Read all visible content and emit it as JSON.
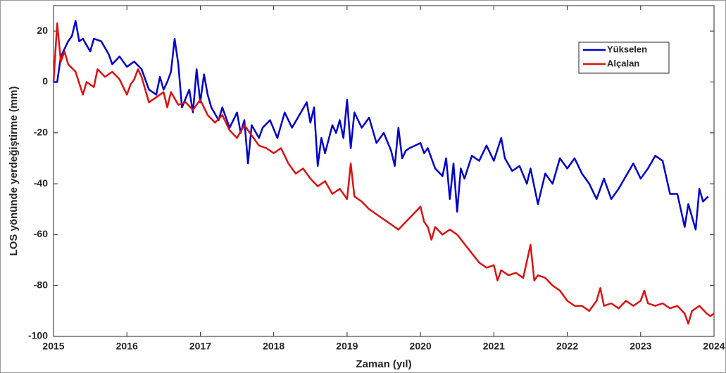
{
  "chart_data": {
    "type": "line",
    "x_label": "Zaman (yıl)",
    "y_label": "LOS yönünde yerdeğiştirme (mm)",
    "xlim": [
      2015,
      2024
    ],
    "xticks": [
      2015,
      2016,
      2017,
      2018,
      2019,
      2020,
      2021,
      2022,
      2023,
      2024
    ],
    "ylim": [
      -100,
      30
    ],
    "yticks": [
      -100,
      -80,
      -60,
      -40,
      -20,
      0,
      20
    ],
    "legend": "upper right",
    "series": [
      {
        "name": "Yükselen",
        "color": "#0000cc",
        "x": [
          2015.0,
          2015.05,
          2015.1,
          2015.15,
          2015.2,
          2015.25,
          2015.3,
          2015.35,
          2015.4,
          2015.5,
          2015.55,
          2015.65,
          2015.75,
          2015.8,
          2015.9,
          2016.0,
          2016.1,
          2016.2,
          2016.3,
          2016.4,
          2016.45,
          2016.5,
          2016.55,
          2016.6,
          2016.65,
          2016.7,
          2016.75,
          2016.85,
          2016.9,
          2016.95,
          2017.0,
          2017.05,
          2017.1,
          2017.15,
          2017.25,
          2017.3,
          2017.4,
          2017.5,
          2017.55,
          2017.6,
          2017.65,
          2017.7,
          2017.8,
          2017.85,
          2017.95,
          2018.05,
          2018.15,
          2018.25,
          2018.35,
          2018.45,
          2018.5,
          2018.55,
          2018.6,
          2018.65,
          2018.7,
          2018.8,
          2018.85,
          2018.9,
          2018.95,
          2019.0,
          2019.05,
          2019.1,
          2019.2,
          2019.3,
          2019.4,
          2019.5,
          2019.6,
          2019.65,
          2019.7,
          2019.75,
          2019.8,
          2019.85,
          2020.0,
          2020.05,
          2020.1,
          2020.2,
          2020.3,
          2020.35,
          2020.4,
          2020.45,
          2020.5,
          2020.55,
          2020.6,
          2020.7,
          2020.8,
          2020.9,
          2021.0,
          2021.1,
          2021.15,
          2021.25,
          2021.35,
          2021.45,
          2021.5,
          2021.6,
          2021.7,
          2021.8,
          2021.9,
          2022.0,
          2022.1,
          2022.2,
          2022.3,
          2022.4,
          2022.5,
          2022.6,
          2022.7,
          2022.8,
          2022.9,
          2023.0,
          2023.1,
          2023.2,
          2023.3,
          2023.4,
          2023.5,
          2023.6,
          2023.65,
          2023.75,
          2023.8,
          2023.85,
          2023.92
        ],
        "values": [
          0,
          0,
          10,
          13,
          16,
          18,
          24,
          16,
          17,
          12,
          17,
          16,
          11,
          7,
          10,
          6,
          8,
          5,
          -3,
          -5,
          2,
          -3,
          0,
          4,
          17,
          7,
          -10,
          -3,
          -12,
          5,
          -8,
          3,
          -5,
          -10,
          -15,
          -10,
          -18,
          -12,
          -20,
          -15,
          -32,
          -17,
          -22,
          -18,
          -15,
          -22,
          -12,
          -18,
          -13,
          -8,
          -16,
          -10,
          -33,
          -22,
          -28,
          -17,
          -20,
          -15,
          -22,
          -7,
          -26,
          -12,
          -18,
          -14,
          -24,
          -20,
          -27,
          -33,
          -18,
          -30,
          -27,
          -26,
          -24,
          -28,
          -26,
          -34,
          -37,
          -30,
          -46,
          -32,
          -51,
          -34,
          -38,
          -29,
          -31,
          -25,
          -31,
          -22,
          -30,
          -35,
          -33,
          -40,
          -34,
          -48,
          -36,
          -40,
          -30,
          -34,
          -30,
          -36,
          -40,
          -46,
          -38,
          -46,
          -42,
          -37,
          -32,
          -38,
          -34,
          -29,
          -31,
          -44,
          -44,
          -57,
          -48,
          -58,
          -42,
          -47,
          -45
        ]
      },
      {
        "name": "Alçalan",
        "color": "#dd1111",
        "x": [
          2015.0,
          2015.05,
          2015.1,
          2015.15,
          2015.2,
          2015.3,
          2015.4,
          2015.45,
          2015.55,
          2015.6,
          2015.7,
          2015.8,
          2015.9,
          2016.0,
          2016.05,
          2016.1,
          2016.15,
          2016.2,
          2016.3,
          2016.4,
          2016.5,
          2016.55,
          2016.6,
          2016.7,
          2016.8,
          2016.9,
          2017.0,
          2017.1,
          2017.2,
          2017.3,
          2017.4,
          2017.5,
          2017.6,
          2017.7,
          2017.8,
          2017.9,
          2018.0,
          2018.1,
          2018.2,
          2018.3,
          2018.4,
          2018.5,
          2018.6,
          2018.7,
          2018.8,
          2018.9,
          2019.0,
          2019.05,
          2019.1,
          2019.2,
          2019.3,
          2019.4,
          2019.5,
          2019.6,
          2019.7,
          2019.8,
          2020.0,
          2020.05,
          2020.1,
          2020.15,
          2020.2,
          2020.3,
          2020.4,
          2020.5,
          2020.8,
          2020.9,
          2021.0,
          2021.05,
          2021.1,
          2021.2,
          2021.3,
          2021.4,
          2021.5,
          2021.55,
          2021.6,
          2021.7,
          2021.8,
          2021.9,
          2022.0,
          2022.1,
          2022.2,
          2022.3,
          2022.4,
          2022.45,
          2022.5,
          2022.6,
          2022.7,
          2022.8,
          2022.9,
          2023.0,
          2023.05,
          2023.1,
          2023.2,
          2023.3,
          2023.4,
          2023.5,
          2023.6,
          2023.65,
          2023.7,
          2023.8,
          2023.9,
          2023.95,
          2024.0
        ],
        "values": [
          0,
          23,
          8,
          12,
          7,
          4,
          -5,
          0,
          -2,
          5,
          2,
          4,
          1,
          -5,
          -1,
          1,
          5,
          2,
          -8,
          -6,
          -4,
          -10,
          -4,
          -9,
          -8,
          -11,
          -7,
          -13,
          -16,
          -13,
          -19,
          -22,
          -17,
          -21,
          -25,
          -26,
          -28,
          -26,
          -32,
          -36,
          -34,
          -38,
          -41,
          -39,
          -44,
          -42,
          -46,
          -32,
          -45,
          -47,
          -50,
          -52,
          -54,
          -56,
          -58,
          -55,
          -49,
          -55,
          -57,
          -62,
          -57,
          -60,
          -58,
          -60,
          -71,
          -73,
          -72,
          -78,
          -74,
          -76,
          -75,
          -77,
          -64,
          -78,
          -76,
          -77,
          -80,
          -82,
          -86,
          -88,
          -88,
          -90,
          -86,
          -81,
          -88,
          -87,
          -89,
          -86,
          -88,
          -86,
          -82,
          -87,
          -88,
          -87,
          -89,
          -88,
          -91,
          -95,
          -90,
          -88,
          -91,
          -92,
          -91
        ]
      }
    ]
  }
}
